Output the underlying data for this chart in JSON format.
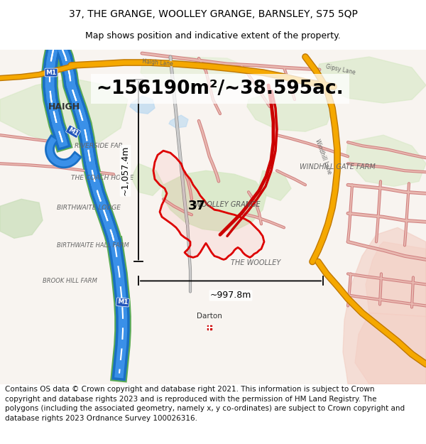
{
  "title_line1": "37, THE GRANGE, WOOLLEY GRANGE, BARNSLEY, S75 5QP",
  "title_line2": "Map shows position and indicative extent of the property.",
  "area_text": "~156190m²/~38.595ac.",
  "dim_vertical": "~1,057.4m",
  "dim_horizontal": "~997.8m",
  "copyright_text": "Contains OS data © Crown copyright and database right 2021. This information is subject to Crown copyright and database rights 2023 and is reproduced with the permission of HM Land Registry. The polygons (including the associated geometry, namely x, y co-ordinates) are subject to Crown copyright and database rights 2023 Ordnance Survey 100026316.",
  "title_fontsize": 10,
  "subtitle_fontsize": 9,
  "area_fontsize": 19,
  "dim_fontsize": 9,
  "copyright_fontsize": 7.5
}
